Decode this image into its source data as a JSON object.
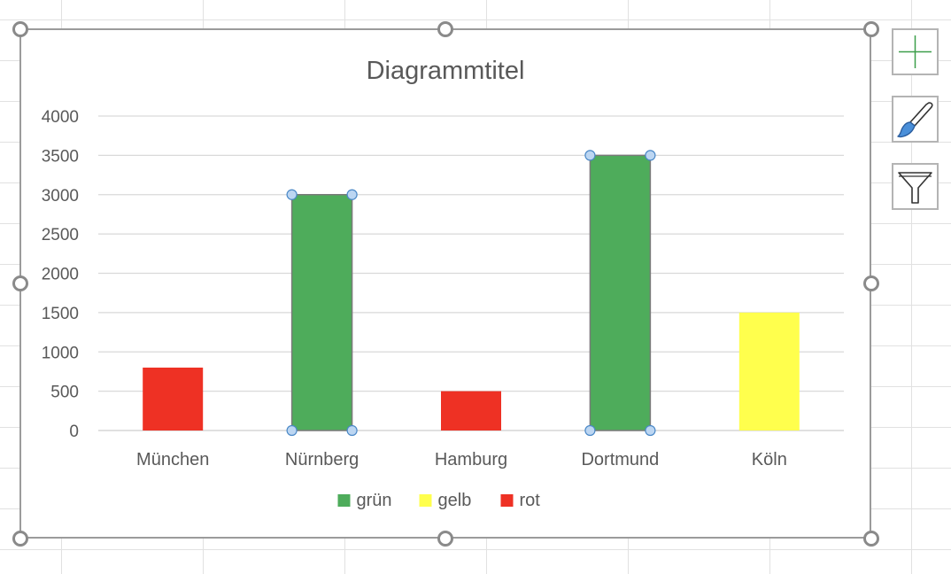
{
  "chart_data": {
    "type": "bar",
    "title": "Diagrammtitel",
    "xlabel": "",
    "ylabel": "",
    "categories": [
      "München",
      "Nürnberg",
      "Hamburg",
      "Dortmund",
      "Köln"
    ],
    "values": [
      800,
      3000,
      500,
      3500,
      1500
    ],
    "bar_series": [
      "rot",
      "grün",
      "rot",
      "grün",
      "gelb"
    ],
    "selected_series": "grün",
    "ylim": [
      0,
      4000
    ],
    "yticks": [
      0,
      500,
      1000,
      1500,
      2000,
      2500,
      3000,
      3500,
      4000
    ],
    "grid": true,
    "legend_position": "bottom",
    "legend": [
      {
        "name": "grün",
        "color": "#4EAC5B"
      },
      {
        "name": "gelb",
        "color": "#FFFF4D"
      },
      {
        "name": "rot",
        "color": "#EE3124"
      }
    ]
  },
  "side_buttons": [
    {
      "name": "chart-elements-button",
      "icon": "plus-icon"
    },
    {
      "name": "chart-styles-button",
      "icon": "paintbrush-icon"
    },
    {
      "name": "chart-filters-button",
      "icon": "filter-icon"
    }
  ]
}
